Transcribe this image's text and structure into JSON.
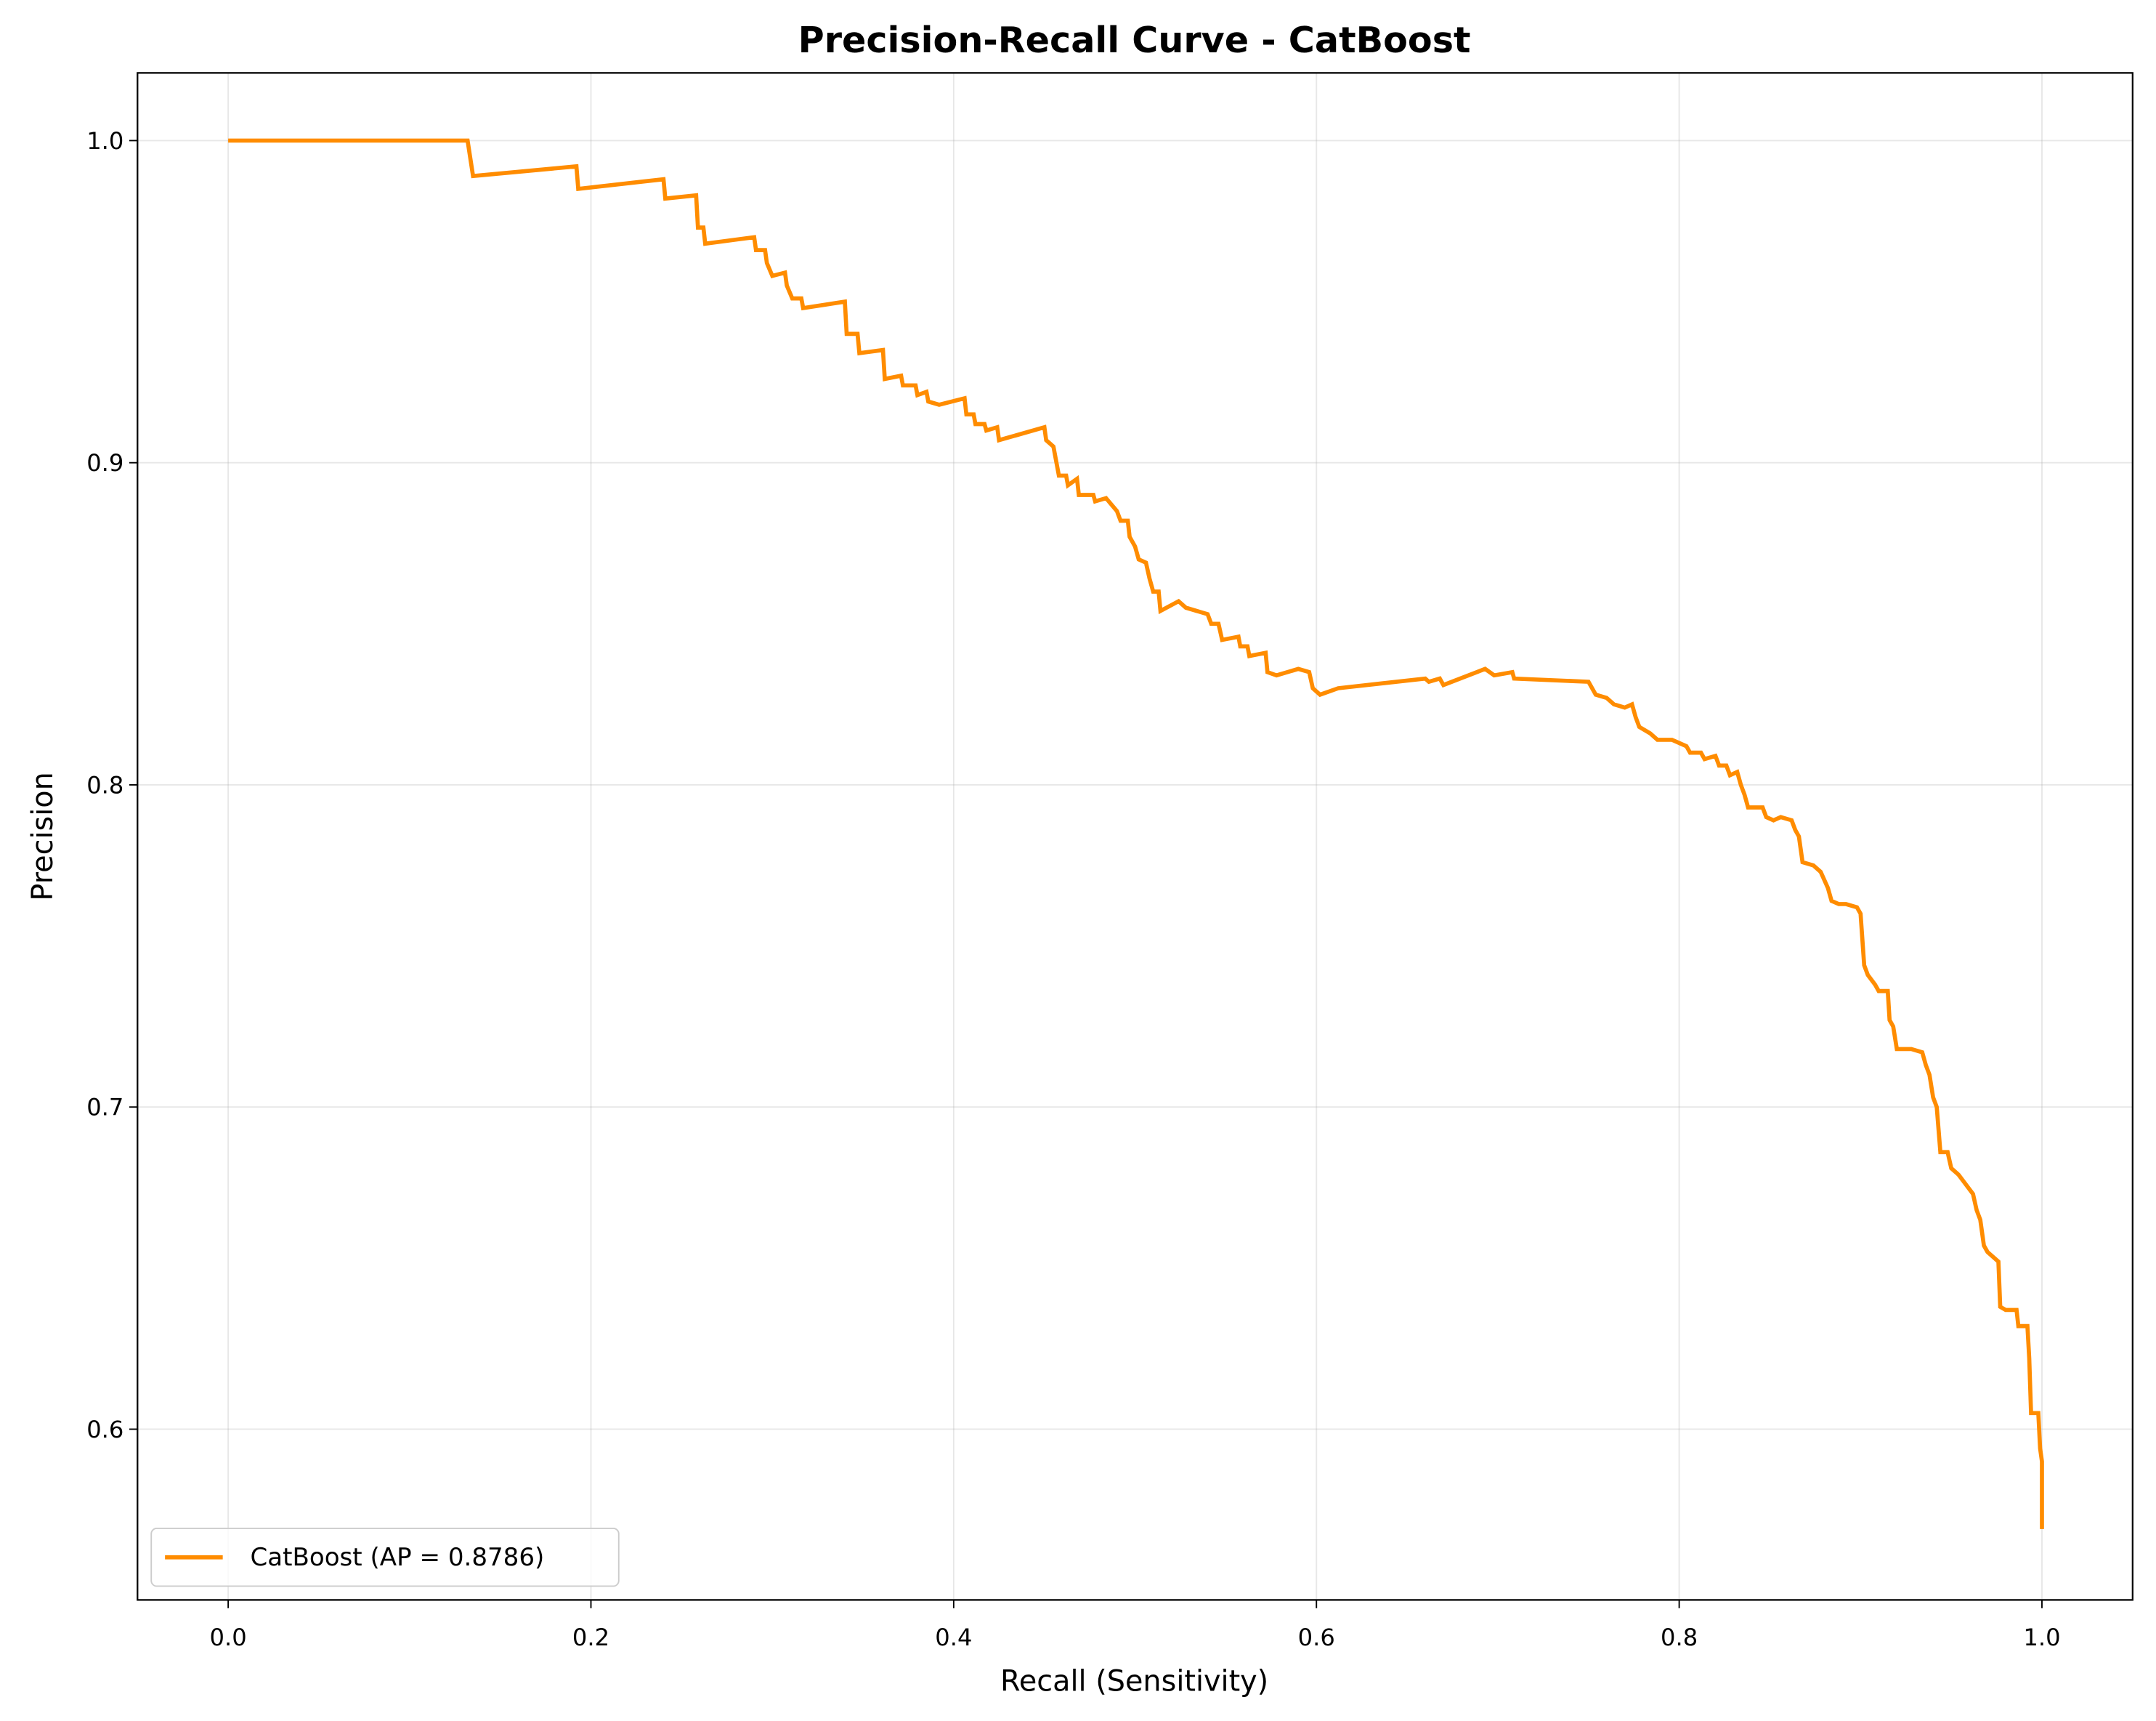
{
  "chart_data": {
    "type": "line",
    "title": "Precision-Recall Curve - CatBoost",
    "xlabel": "Recall (Sensitivity)",
    "ylabel": "Precision",
    "xlim": [
      -0.05,
      1.05
    ],
    "ylim": [
      0.547,
      1.021
    ],
    "xticks": [
      {
        "value": 0,
        "label": "0.0"
      },
      0.2,
      0.4,
      0.6,
      0.8,
      {
        "value": 1,
        "label": "1.0"
      }
    ],
    "yticks": [
      0.6,
      0.7,
      0.8,
      0.9,
      {
        "value": 1,
        "label": "1.0"
      }
    ],
    "grid": true,
    "legend": "lower left",
    "x": [
      0,
      0.132,
      0.135,
      0.192,
      0.193,
      0.24,
      0.241,
      0.258,
      0.259,
      0.262,
      0.263,
      0.29,
      0.291,
      0.296,
      0.297,
      0.3,
      0.307,
      0.308,
      0.311,
      0.316,
      0.317,
      0.34,
      0.341,
      0.347,
      0.348,
      0.361,
      0.362,
      0.371,
      0.372,
      0.379,
      0.38,
      0.385,
      0.386,
      0.392,
      0.406,
      0.407,
      0.411,
      0.412,
      0.417,
      0.418,
      0.424,
      0.425,
      0.45,
      0.451,
      0.455,
      0.457,
      0.458,
      0.462,
      0.463,
      0.468,
      0.469,
      0.477,
      0.478,
      0.484,
      0.49,
      0.492,
      0.496,
      0.497,
      0.5,
      0.502,
      0.506,
      0.508,
      0.51,
      0.513,
      0.514,
      0.524,
      0.528,
      0.534,
      0.54,
      0.542,
      0.546,
      0.548,
      0.557,
      0.558,
      0.562,
      0.563,
      0.572,
      0.573,
      0.578,
      0.59,
      0.596,
      0.598,
      0.602,
      0.612,
      0.66,
      0.662,
      0.668,
      0.67,
      0.693,
      0.698,
      0.708,
      0.709,
      0.75,
      0.754,
      0.76,
      0.764,
      0.77,
      0.774,
      0.776,
      0.778,
      0.784,
      0.788,
      0.796,
      0.804,
      0.806,
      0.812,
      0.814,
      0.82,
      0.822,
      0.826,
      0.828,
      0.832,
      0.834,
      0.836,
      0.838,
      0.846,
      0.848,
      0.852,
      0.856,
      0.862,
      0.864,
      0.866,
      0.868,
      0.874,
      0.878,
      0.882,
      0.884,
      0.888,
      0.892,
      0.898,
      0.9,
      0.902,
      0.904,
      0.908,
      0.91,
      0.915,
      0.916,
      0.918,
      0.92,
      0.928,
      0.934,
      0.936,
      0.938,
      0.94,
      0.942,
      0.944,
      0.948,
      0.95,
      0.954,
      0.958,
      0.962,
      0.964,
      0.966,
      0.968,
      0.97,
      0.974,
      0.976,
      0.977,
      0.98,
      0.986,
      0.987,
      0.992,
      0.993,
      0.994,
      0.998,
      0.999,
      1,
      1
    ],
    "series": [
      {
        "name": "CatBoost (AP = 0.8786)",
        "color": "#ff8c00",
        "values": [
          1,
          1,
          0.989,
          0.992,
          0.985,
          0.988,
          0.982,
          0.983,
          0.973,
          0.973,
          0.968,
          0.97,
          0.966,
          0.966,
          0.962,
          0.958,
          0.959,
          0.955,
          0.951,
          0.951,
          0.948,
          0.95,
          0.94,
          0.94,
          0.934,
          0.935,
          0.926,
          0.927,
          0.924,
          0.924,
          0.921,
          0.922,
          0.919,
          0.918,
          0.92,
          0.915,
          0.915,
          0.912,
          0.912,
          0.91,
          0.911,
          0.907,
          0.911,
          0.907,
          0.905,
          0.899,
          0.896,
          0.896,
          0.893,
          0.895,
          0.89,
          0.89,
          0.888,
          0.889,
          0.885,
          0.882,
          0.882,
          0.877,
          0.874,
          0.87,
          0.869,
          0.864,
          0.86,
          0.86,
          0.854,
          0.857,
          0.855,
          0.854,
          0.853,
          0.85,
          0.85,
          0.845,
          0.846,
          0.843,
          0.843,
          0.84,
          0.841,
          0.835,
          0.834,
          0.836,
          0.835,
          0.83,
          0.828,
          0.83,
          0.833,
          0.832,
          0.833,
          0.831,
          0.836,
          0.834,
          0.835,
          0.833,
          0.832,
          0.828,
          0.827,
          0.825,
          0.824,
          0.825,
          0.821,
          0.818,
          0.816,
          0.814,
          0.814,
          0.812,
          0.81,
          0.81,
          0.808,
          0.809,
          0.806,
          0.806,
          0.803,
          0.804,
          0.8,
          0.797,
          0.793,
          0.793,
          0.79,
          0.789,
          0.79,
          0.789,
          0.786,
          0.784,
          0.776,
          0.775,
          0.773,
          0.768,
          0.764,
          0.763,
          0.763,
          0.762,
          0.76,
          0.744,
          0.741,
          0.738,
          0.736,
          0.736,
          0.727,
          0.725,
          0.718,
          0.718,
          0.717,
          0.713,
          0.71,
          0.703,
          0.7,
          0.686,
          0.686,
          0.681,
          0.679,
          0.676,
          0.673,
          0.668,
          0.665,
          0.657,
          0.655,
          0.653,
          0.652,
          0.638,
          0.637,
          0.637,
          0.632,
          0.632,
          0.622,
          0.605,
          0.605,
          0.594,
          0.59,
          0.569
        ]
      }
    ]
  }
}
